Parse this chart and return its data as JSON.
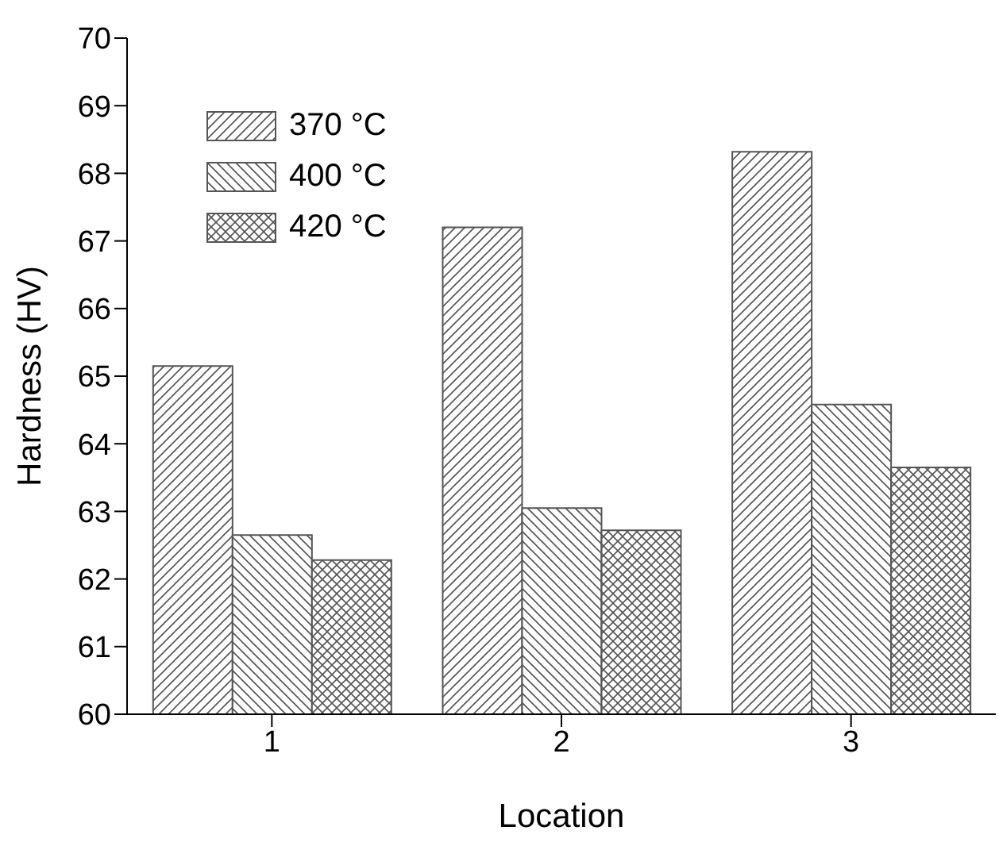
{
  "chart_data": {
    "type": "bar",
    "xlabel": "Location",
    "ylabel": "Hardness (HV)",
    "categories": [
      "1",
      "2",
      "3"
    ],
    "series": [
      {
        "name": "370 °C",
        "color": "#555555",
        "values": [
          65.15,
          67.2,
          68.32
        ]
      },
      {
        "name": "400 °C",
        "color": "#555555",
        "values": [
          62.65,
          63.05,
          64.58
        ]
      },
      {
        "name": "420 °C",
        "color": "#555555",
        "values": [
          62.28,
          62.72,
          63.65
        ]
      }
    ],
    "ylim": [
      60,
      70
    ],
    "yticks": [
      60,
      61,
      62,
      63,
      64,
      65,
      66,
      67,
      68,
      69,
      70
    ],
    "grid": false,
    "legend": "top left"
  }
}
